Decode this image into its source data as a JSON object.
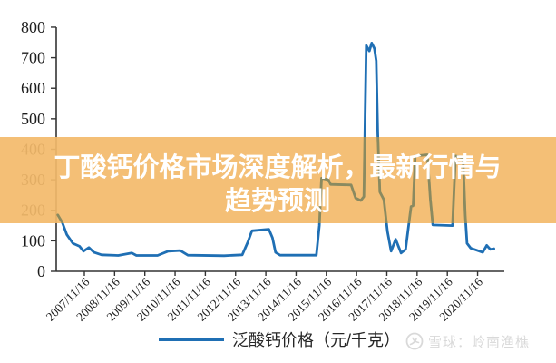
{
  "banner": {
    "title_line1": "丁酸钙价格市场深度解析，最新行情与",
    "title_line2": "趋势预测",
    "background_color": "#F3BA6A",
    "text_color": "#FFFFFF"
  },
  "legend": {
    "label": "泛酸钙价格（元/千克）",
    "line_color": "#1F6FB4"
  },
  "watermark": {
    "text": "雪球：岭南渔樵",
    "logo_icon": "xueqiu-circle-logo",
    "color": "#D9D9D9"
  },
  "chart_data": {
    "type": "line",
    "title": "",
    "series_name": "泛酸钙价格（元/千克）",
    "line_color": "#1F6FB4",
    "line_color_behind_banner": "#8A8A60",
    "axis_color": "#333333",
    "ylim": [
      0,
      800
    ],
    "y_ticks": [
      0,
      100,
      200,
      300,
      400,
      500,
      600,
      700,
      800
    ],
    "x_tick_labels": [
      "2007/11/16",
      "2008/11/16",
      "2009/11/16",
      "2010/11/16",
      "2011/11/16",
      "2012/11/16",
      "2013/11/16",
      "2014/11/16",
      "2015/11/16",
      "2016/11/16",
      "2017/11/16",
      "2018/11/16",
      "2019/11/16",
      "2020/11/16"
    ],
    "grid": false,
    "legend_position": "bottom-center",
    "points_format": "[decimal_year, price_yuan_per_kg]",
    "points": [
      [
        2007.0,
        185
      ],
      [
        2007.15,
        160
      ],
      [
        2007.3,
        120
      ],
      [
        2007.5,
        92
      ],
      [
        2007.72,
        82
      ],
      [
        2007.85,
        66
      ],
      [
        2008.03,
        78
      ],
      [
        2008.2,
        62
      ],
      [
        2008.45,
        54
      ],
      [
        2009.0,
        52
      ],
      [
        2009.45,
        60
      ],
      [
        2009.6,
        52
      ],
      [
        2010.3,
        52
      ],
      [
        2010.65,
        66
      ],
      [
        2011.05,
        68
      ],
      [
        2011.3,
        53
      ],
      [
        2012.5,
        51
      ],
      [
        2013.1,
        54
      ],
      [
        2013.28,
        95
      ],
      [
        2013.42,
        133
      ],
      [
        2013.98,
        138
      ],
      [
        2014.1,
        110
      ],
      [
        2014.2,
        62
      ],
      [
        2014.35,
        53
      ],
      [
        2015.55,
        53
      ],
      [
        2015.65,
        150
      ],
      [
        2015.72,
        305
      ],
      [
        2015.95,
        300
      ],
      [
        2016.02,
        285
      ],
      [
        2016.7,
        283
      ],
      [
        2016.85,
        240
      ],
      [
        2017.02,
        232
      ],
      [
        2017.12,
        245
      ],
      [
        2017.2,
        740
      ],
      [
        2017.3,
        722
      ],
      [
        2017.38,
        748
      ],
      [
        2017.47,
        730
      ],
      [
        2017.53,
        690
      ],
      [
        2017.58,
        450
      ],
      [
        2017.65,
        260
      ],
      [
        2017.78,
        235
      ],
      [
        2017.9,
        130
      ],
      [
        2018.02,
        66
      ],
      [
        2018.17,
        105
      ],
      [
        2018.35,
        60
      ],
      [
        2018.5,
        72
      ],
      [
        2018.6,
        150
      ],
      [
        2018.68,
        212
      ],
      [
        2018.75,
        215
      ],
      [
        2018.82,
        378
      ],
      [
        2019.22,
        382
      ],
      [
        2019.32,
        235
      ],
      [
        2019.4,
        152
      ],
      [
        2020.05,
        150
      ],
      [
        2020.15,
        378
      ],
      [
        2020.4,
        372
      ],
      [
        2020.47,
        185
      ],
      [
        2020.53,
        92
      ],
      [
        2020.65,
        76
      ],
      [
        2020.88,
        68
      ],
      [
        2021.05,
        62
      ],
      [
        2021.18,
        85
      ],
      [
        2021.3,
        72
      ],
      [
        2021.42,
        74
      ]
    ]
  }
}
